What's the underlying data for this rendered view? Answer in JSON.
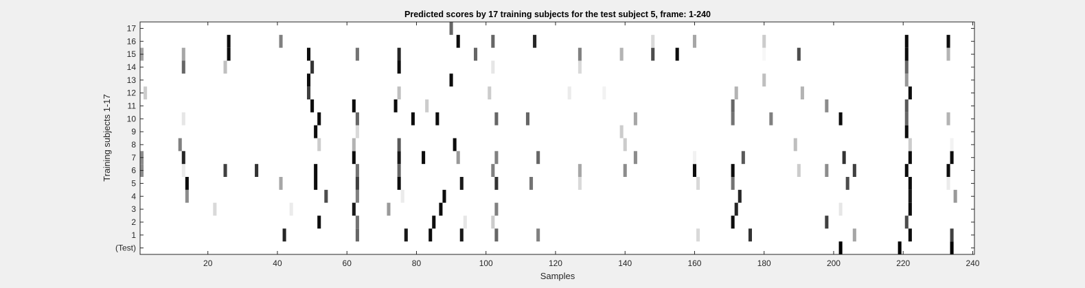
{
  "chart_data": {
    "type": "heatmap",
    "title": "Predicted scores by 17 training subjects for the test subject 5, frame: 1-240",
    "xlabel": "Samples",
    "ylabel": "Training subjects 1-17",
    "xlim": [
      0.5,
      240.5
    ],
    "xticks": [
      20,
      40,
      60,
      80,
      100,
      120,
      140,
      160,
      180,
      200,
      220,
      240
    ],
    "ytick_labels": [
      "(Test)",
      "1",
      "2",
      "3",
      "4",
      "5",
      "6",
      "7",
      "8",
      "9",
      "10",
      "11",
      "12",
      "13",
      "14",
      "15",
      "16",
      "17"
    ],
    "colormap": "gray-inverted",
    "value_range": [
      0,
      1
    ],
    "rows": [
      {
        "label": "(Test)",
        "cells": [
          [
            202,
            1.0
          ],
          [
            219,
            1.0
          ],
          [
            234,
            1.0
          ]
        ]
      },
      {
        "label": "1",
        "cells": [
          [
            42,
            0.85
          ],
          [
            63,
            0.6
          ],
          [
            77,
            0.9
          ],
          [
            84,
            0.95
          ],
          [
            93,
            0.9
          ],
          [
            103,
            0.6
          ],
          [
            115,
            0.5
          ],
          [
            161,
            0.15
          ],
          [
            176,
            0.8
          ],
          [
            206,
            0.35
          ],
          [
            222,
            0.95
          ],
          [
            234,
            0.75
          ]
        ]
      },
      {
        "label": "2",
        "cells": [
          [
            52,
            0.95
          ],
          [
            63,
            0.55
          ],
          [
            85,
            0.95
          ],
          [
            94,
            0.1
          ],
          [
            102,
            0.2
          ],
          [
            171,
            0.95
          ],
          [
            198,
            0.75
          ],
          [
            221,
            0.7
          ]
        ]
      },
      {
        "label": "3",
        "cells": [
          [
            22,
            0.15
          ],
          [
            44,
            0.08
          ],
          [
            62,
            0.9
          ],
          [
            72,
            0.4
          ],
          [
            87,
            0.95
          ],
          [
            103,
            0.5
          ],
          [
            172,
            0.85
          ],
          [
            202,
            0.1
          ],
          [
            222,
            0.95
          ]
        ]
      },
      {
        "label": "4",
        "cells": [
          [
            14,
            0.45
          ],
          [
            54,
            0.7
          ],
          [
            63,
            0.5
          ],
          [
            76,
            0.08
          ],
          [
            88,
            0.95
          ],
          [
            173,
            0.85
          ],
          [
            222,
            0.9
          ],
          [
            235,
            0.4
          ]
        ]
      },
      {
        "label": "5",
        "cells": [
          [
            14,
            0.95
          ],
          [
            41,
            0.35
          ],
          [
            51,
            0.95
          ],
          [
            63,
            0.75
          ],
          [
            75,
            0.95
          ],
          [
            93,
            0.9
          ],
          [
            103,
            0.8
          ],
          [
            113,
            0.55
          ],
          [
            127,
            0.15
          ],
          [
            161,
            0.15
          ],
          [
            171,
            0.55
          ],
          [
            204,
            0.7
          ],
          [
            222,
            0.95
          ],
          [
            233,
            0.08
          ]
        ]
      },
      {
        "label": "6",
        "cells": [
          [
            1,
            0.45
          ],
          [
            13,
            0.08
          ],
          [
            25,
            0.75
          ],
          [
            34,
            0.8
          ],
          [
            51,
            0.95
          ],
          [
            63,
            0.55
          ],
          [
            75,
            0.6
          ],
          [
            102,
            0.5
          ],
          [
            127,
            0.35
          ],
          [
            140,
            0.45
          ],
          [
            160,
            0.95
          ],
          [
            171,
            0.95
          ],
          [
            190,
            0.2
          ],
          [
            198,
            0.45
          ],
          [
            206,
            0.75
          ],
          [
            221,
            0.95
          ],
          [
            233,
            0.95
          ]
        ]
      },
      {
        "label": "7",
        "cells": [
          [
            1,
            0.45
          ],
          [
            13,
            0.85
          ],
          [
            62,
            0.95
          ],
          [
            75,
            0.9
          ],
          [
            82,
            0.95
          ],
          [
            92,
            0.4
          ],
          [
            103,
            0.5
          ],
          [
            115,
            0.6
          ],
          [
            143,
            0.45
          ],
          [
            160,
            0.05
          ],
          [
            174,
            0.65
          ],
          [
            203,
            0.8
          ],
          [
            222,
            0.95
          ],
          [
            234,
            0.95
          ]
        ]
      },
      {
        "label": "8",
        "cells": [
          [
            12,
            0.5
          ],
          [
            52,
            0.2
          ],
          [
            62,
            0.3
          ],
          [
            75,
            0.65
          ],
          [
            91,
            0.95
          ],
          [
            140,
            0.2
          ],
          [
            189,
            0.25
          ],
          [
            222,
            0.2
          ],
          [
            234,
            0.05
          ]
        ]
      },
      {
        "label": "9",
        "cells": [
          [
            51,
            0.95
          ],
          [
            63,
            0.15
          ],
          [
            139,
            0.2
          ],
          [
            221,
            0.95
          ]
        ]
      },
      {
        "label": "10",
        "cells": [
          [
            13,
            0.1
          ],
          [
            52,
            0.95
          ],
          [
            63,
            0.6
          ],
          [
            79,
            0.95
          ],
          [
            86,
            0.95
          ],
          [
            103,
            0.6
          ],
          [
            112,
            0.6
          ],
          [
            143,
            0.35
          ],
          [
            171,
            0.55
          ],
          [
            182,
            0.5
          ],
          [
            202,
            0.95
          ],
          [
            221,
            0.6
          ],
          [
            233,
            0.3
          ]
        ]
      },
      {
        "label": "11",
        "cells": [
          [
            50,
            0.95
          ],
          [
            62,
            0.95
          ],
          [
            74,
            0.95
          ],
          [
            83,
            0.2
          ],
          [
            171,
            0.6
          ],
          [
            198,
            0.45
          ],
          [
            221,
            0.65
          ]
        ]
      },
      {
        "label": "12",
        "cells": [
          [
            2,
            0.2
          ],
          [
            49,
            0.75
          ],
          [
            75,
            0.25
          ],
          [
            101,
            0.2
          ],
          [
            124,
            0.08
          ],
          [
            134,
            0.05
          ],
          [
            172,
            0.3
          ],
          [
            191,
            0.3
          ],
          [
            222,
            0.95
          ]
        ]
      },
      {
        "label": "13",
        "cells": [
          [
            49,
            0.95
          ],
          [
            90,
            0.95
          ],
          [
            180,
            0.25
          ],
          [
            221,
            0.4
          ]
        ]
      },
      {
        "label": "14",
        "cells": [
          [
            13,
            0.6
          ],
          [
            25,
            0.25
          ],
          [
            50,
            0.8
          ],
          [
            75,
            0.95
          ],
          [
            102,
            0.1
          ],
          [
            127,
            0.15
          ],
          [
            221,
            0.6
          ]
        ]
      },
      {
        "label": "15",
        "cells": [
          [
            1,
            0.35
          ],
          [
            13,
            0.35
          ],
          [
            26,
            0.95
          ],
          [
            49,
            0.95
          ],
          [
            63,
            0.55
          ],
          [
            75,
            0.85
          ],
          [
            97,
            0.6
          ],
          [
            127,
            0.5
          ],
          [
            139,
            0.3
          ],
          [
            148,
            0.7
          ],
          [
            155,
            0.95
          ],
          [
            180,
            0.03
          ],
          [
            190,
            0.7
          ],
          [
            221,
            0.95
          ],
          [
            233,
            0.3
          ]
        ]
      },
      {
        "label": "16",
        "cells": [
          [
            26,
            0.95
          ],
          [
            41,
            0.5
          ],
          [
            92,
            0.95
          ],
          [
            102,
            0.6
          ],
          [
            114,
            0.85
          ],
          [
            148,
            0.15
          ],
          [
            160,
            0.35
          ],
          [
            180,
            0.2
          ],
          [
            221,
            0.95
          ],
          [
            233,
            0.95
          ]
        ]
      },
      {
        "label": "17",
        "cells": [
          [
            90,
            0.6
          ]
        ]
      }
    ]
  }
}
